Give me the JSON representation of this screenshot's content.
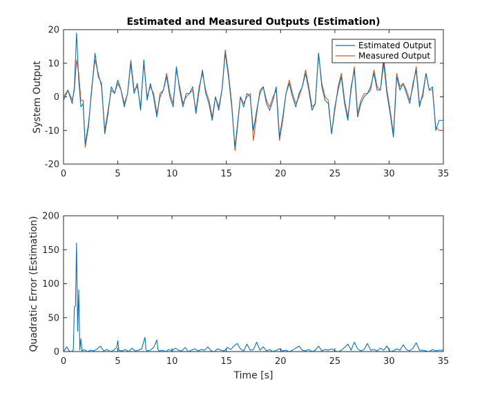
{
  "chart_data": [
    {
      "type": "line",
      "title": "Estimated and Measured Outputs (Estimation)",
      "xlabel": "",
      "ylabel": "System Output",
      "xlim": [
        0,
        35
      ],
      "ylim": [
        -20,
        20
      ],
      "xticks": [
        "0",
        "5",
        "10",
        "15",
        "20",
        "25",
        "30",
        "35"
      ],
      "yticks": [
        "-20",
        "-10",
        "0",
        "10",
        "20"
      ],
      "legend": {
        "location": "top-right"
      },
      "series": [
        {
          "name": "Estimated Output",
          "color": "#0072BD",
          "x": [
            0,
            0.4,
            0.8,
            1.0,
            1.2,
            1.4,
            1.6,
            1.8,
            2.0,
            2.3,
            2.6,
            2.9,
            3.2,
            3.5,
            3.8,
            4.1,
            4.4,
            4.7,
            5.0,
            5.3,
            5.6,
            5.9,
            6.2,
            6.5,
            6.8,
            7.1,
            7.4,
            7.7,
            8.0,
            8.3,
            8.6,
            8.9,
            9.2,
            9.5,
            9.8,
            10.1,
            10.4,
            10.7,
            11.0,
            11.3,
            11.6,
            11.9,
            12.2,
            12.5,
            12.8,
            13.1,
            13.4,
            13.7,
            14.0,
            14.3,
            14.6,
            14.9,
            15.2,
            15.5,
            15.8,
            16.0,
            16.3,
            16.6,
            16.9,
            17.2,
            17.5,
            17.8,
            18.1,
            18.4,
            18.7,
            19.0,
            19.3,
            19.6,
            19.9,
            20.2,
            20.5,
            20.8,
            21.1,
            21.4,
            21.7,
            22.0,
            22.3,
            22.6,
            22.9,
            23.2,
            23.5,
            23.8,
            24.1,
            24.4,
            24.7,
            25.0,
            25.3,
            25.6,
            25.9,
            26.2,
            26.5,
            26.8,
            27.1,
            27.4,
            27.7,
            28.0,
            28.3,
            28.6,
            28.9,
            29.2,
            29.5,
            29.8,
            30.1,
            30.4,
            30.7,
            31.0,
            31.3,
            31.6,
            31.9,
            32.2,
            32.5,
            32.8,
            33.1,
            33.4,
            33.7,
            34.0,
            34.3,
            34.6,
            35.0
          ],
          "y": [
            -1,
            2,
            -2,
            3,
            19,
            5,
            -3,
            -2,
            -14,
            -8,
            2,
            13,
            6,
            4,
            -11,
            -5,
            3,
            1,
            5,
            2,
            -3,
            1,
            10,
            1,
            4,
            -4,
            11,
            -1,
            4,
            0,
            -6,
            1,
            2,
            6,
            0,
            -3,
            9,
            2,
            -3,
            1,
            1,
            3,
            -5,
            2,
            8,
            1,
            -2,
            -7,
            0,
            -4,
            2,
            13,
            6,
            -3,
            -15,
            -9,
            0,
            -3,
            1,
            0,
            -10,
            -4,
            1,
            3,
            -2,
            -4,
            -1,
            3,
            -12,
            -6,
            1,
            4,
            0,
            -3,
            1,
            3,
            7,
            2,
            -4,
            -2,
            13,
            3,
            -1,
            -2,
            -11,
            -3,
            2,
            6,
            -2,
            -7,
            3,
            8,
            -6,
            -2,
            0,
            1,
            3,
            7,
            2,
            2,
            10,
            1,
            -5,
            -12,
            6,
            2,
            4,
            1,
            -2,
            4,
            8,
            -3,
            1,
            7,
            2,
            3,
            -10,
            -7,
            -7
          ],
          "line_width": 1.1
        },
        {
          "name": "Measured Output",
          "color": "#D95319",
          "x": [
            0,
            0.4,
            0.8,
            1.0,
            1.2,
            1.4,
            1.6,
            1.8,
            2.0,
            2.3,
            2.6,
            2.9,
            3.2,
            3.5,
            3.8,
            4.1,
            4.4,
            4.7,
            5.0,
            5.3,
            5.6,
            5.9,
            6.2,
            6.5,
            6.8,
            7.1,
            7.4,
            7.7,
            8.0,
            8.3,
            8.6,
            8.9,
            9.2,
            9.5,
            9.8,
            10.1,
            10.4,
            10.7,
            11.0,
            11.3,
            11.6,
            11.9,
            12.2,
            12.5,
            12.8,
            13.1,
            13.4,
            13.7,
            14.0,
            14.3,
            14.6,
            14.9,
            15.2,
            15.5,
            15.8,
            16.0,
            16.3,
            16.6,
            16.9,
            17.2,
            17.5,
            17.8,
            18.1,
            18.4,
            18.7,
            19.0,
            19.3,
            19.6,
            19.9,
            20.2,
            20.5,
            20.8,
            21.1,
            21.4,
            21.7,
            22.0,
            22.3,
            22.6,
            22.9,
            23.2,
            23.5,
            23.8,
            24.1,
            24.4,
            24.7,
            25.0,
            25.3,
            25.6,
            25.9,
            26.2,
            26.5,
            26.8,
            27.1,
            27.4,
            27.7,
            28.0,
            28.3,
            28.6,
            28.9,
            29.2,
            29.5,
            29.8,
            30.1,
            30.4,
            30.7,
            31.0,
            31.3,
            31.6,
            31.9,
            32.2,
            32.5,
            32.8,
            33.1,
            33.4,
            33.7,
            34.0,
            34.3,
            34.6,
            35.0
          ],
          "y": [
            0,
            2,
            -1,
            2,
            11,
            7,
            -1,
            -1,
            -15,
            -9,
            3,
            11,
            7,
            3,
            -10,
            -4,
            2,
            1,
            4,
            2,
            -2,
            1,
            11,
            2,
            3,
            -3,
            10,
            0,
            3,
            1,
            -5,
            0,
            2,
            7,
            1,
            -2,
            8,
            3,
            -2,
            0,
            1,
            2,
            -4,
            3,
            7,
            2,
            -1,
            -6,
            0,
            -3,
            2,
            14,
            7,
            -2,
            -16,
            -10,
            0,
            -2,
            0,
            1,
            -13,
            -5,
            2,
            3,
            -1,
            -3,
            0,
            2,
            -13,
            -7,
            1,
            5,
            1,
            -2,
            0,
            3,
            8,
            3,
            -3,
            -2,
            13,
            4,
            0,
            -1,
            -11,
            -4,
            3,
            7,
            -1,
            -6,
            2,
            9,
            -5,
            -1,
            1,
            1,
            2,
            8,
            3,
            2,
            12,
            2,
            -4,
            -11,
            7,
            3,
            4,
            2,
            -1,
            3,
            9,
            -2,
            0,
            7,
            2,
            2,
            -9,
            -10,
            -10
          ],
          "line_width": 1.1
        }
      ]
    },
    {
      "type": "line",
      "title": "",
      "xlabel": "Time [s]",
      "ylabel": "Quadratic Error (Estimation)",
      "xlim": [
        0,
        35
      ],
      "ylim": [
        0,
        200
      ],
      "xticks": [
        "0",
        "5",
        "10",
        "15",
        "20",
        "25",
        "30",
        "35"
      ],
      "yticks": [
        "0",
        "50",
        "100",
        "150",
        "200"
      ],
      "series": [
        {
          "name": "Quadratic Error",
          "color": "#0072BD",
          "x": [
            0,
            0.3,
            0.5,
            0.7,
            0.9,
            1.0,
            1.1,
            1.2,
            1.3,
            1.4,
            1.5,
            1.6,
            1.7,
            1.9,
            2.2,
            2.5,
            2.8,
            3.1,
            3.4,
            3.7,
            4.0,
            4.3,
            4.6,
            4.9,
            5.0,
            5.1,
            5.4,
            5.7,
            6.0,
            6.3,
            6.6,
            6.9,
            7.2,
            7.5,
            7.6,
            7.7,
            8.0,
            8.3,
            8.6,
            8.7,
            8.8,
            9.1,
            9.4,
            9.7,
            10.0,
            10.3,
            10.6,
            10.9,
            11.2,
            11.5,
            11.8,
            12.1,
            12.4,
            12.7,
            13.0,
            13.3,
            13.6,
            13.9,
            14.2,
            14.5,
            14.8,
            15.1,
            15.4,
            15.7,
            16.0,
            16.3,
            16.6,
            16.9,
            17.2,
            17.5,
            17.8,
            18.1,
            18.4,
            18.7,
            19.0,
            19.3,
            19.6,
            19.9,
            20.2,
            20.5,
            20.8,
            21.1,
            21.4,
            21.7,
            22.0,
            22.3,
            22.6,
            22.9,
            23.2,
            23.5,
            23.8,
            24.1,
            24.4,
            24.7,
            25.0,
            25.3,
            25.6,
            25.9,
            26.2,
            26.5,
            26.8,
            27.1,
            27.4,
            27.7,
            28.0,
            28.3,
            28.6,
            28.9,
            29.2,
            29.5,
            29.8,
            30.1,
            30.4,
            30.7,
            31.0,
            31.3,
            31.6,
            31.9,
            32.2,
            32.5,
            32.8,
            33.1,
            33.4,
            33.7,
            34.0,
            34.3,
            34.6,
            35.0
          ],
          "y": [
            0,
            7,
            1,
            0,
            2,
            66,
            67,
            160,
            30,
            91,
            2,
            19,
            1,
            3,
            0,
            2,
            1,
            4,
            8,
            1,
            3,
            0,
            2,
            6,
            16,
            2,
            1,
            3,
            0,
            5,
            1,
            2,
            4,
            21,
            3,
            1,
            2,
            6,
            17,
            3,
            1,
            2,
            0,
            3,
            1,
            5,
            2,
            1,
            6,
            0,
            2,
            4,
            1,
            3,
            2,
            7,
            1,
            0,
            4,
            2,
            1,
            6,
            3,
            8,
            12,
            4,
            1,
            11,
            2,
            3,
            14,
            2,
            7,
            1,
            3,
            0,
            2,
            4,
            1,
            2,
            0,
            2,
            5,
            8,
            2,
            1,
            3,
            0,
            2,
            8,
            1,
            3,
            2,
            4,
            1,
            0,
            2,
            6,
            11,
            2,
            14,
            4,
            1,
            3,
            12,
            2,
            3,
            1,
            5,
            2,
            8,
            0,
            1,
            4,
            2,
            10,
            3,
            1,
            5,
            13,
            2,
            2,
            1,
            0,
            3,
            1,
            2,
            2
          ],
          "line_width": 1.1
        }
      ]
    }
  ]
}
